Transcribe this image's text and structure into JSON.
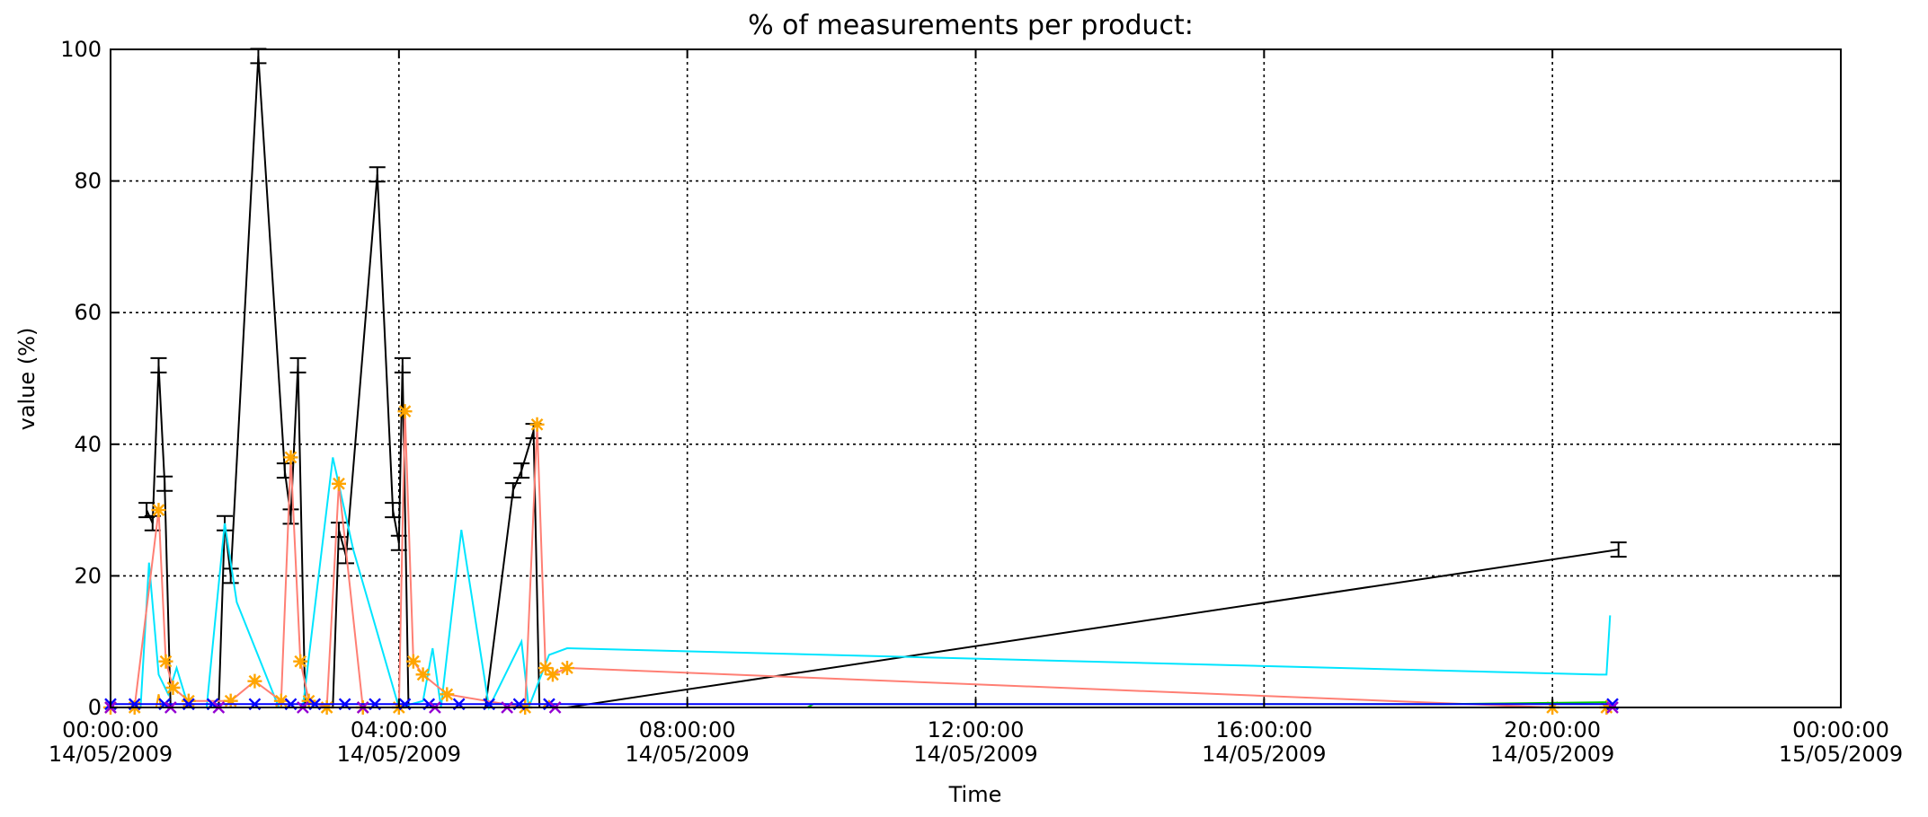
{
  "chart_data": {
    "type": "line",
    "title": "% of measurements per product:",
    "xlabel": "Time",
    "ylabel": "value (%)",
    "ylim": [
      0,
      100
    ],
    "xlim": [
      "2009-05-14T00:00",
      "2009-05-15T00:00"
    ],
    "grid": true,
    "y_ticks": [
      "0",
      "20",
      "40",
      "60",
      "80",
      "100"
    ],
    "x_ticks": [
      {
        "t": "2009-05-14T00:00",
        "time": "00:00:00",
        "date": "14/05/2009"
      },
      {
        "t": "2009-05-14T04:00",
        "time": "04:00:00",
        "date": "14/05/2009"
      },
      {
        "t": "2009-05-14T08:00",
        "time": "08:00:00",
        "date": "14/05/2009"
      },
      {
        "t": "2009-05-14T12:00",
        "time": "12:00:00",
        "date": "14/05/2009"
      },
      {
        "t": "2009-05-14T16:00",
        "time": "16:00:00",
        "date": "14/05/2009"
      },
      {
        "t": "2009-05-14T20:00",
        "time": "20:00:00",
        "date": "14/05/2009"
      },
      {
        "t": "2009-05-15T00:00",
        "time": "00:00:00",
        "date": "15/05/2009"
      }
    ],
    "series": [
      {
        "color": "#000000",
        "marker": "errorbar",
        "points": [
          [
            "2009-05-14T00:30",
            30
          ],
          [
            "2009-05-14T00:35",
            28
          ],
          [
            "2009-05-14T00:40",
            52
          ],
          [
            "2009-05-14T00:45",
            34
          ],
          [
            "2009-05-14T00:50",
            0
          ],
          [
            "2009-05-14T01:30",
            0
          ],
          [
            "2009-05-14T01:35",
            28
          ],
          [
            "2009-05-14T01:40",
            20
          ],
          [
            "2009-05-14T02:03",
            99
          ],
          [
            "2009-05-14T02:25",
            36
          ],
          [
            "2009-05-14T02:30",
            29
          ],
          [
            "2009-05-14T02:36",
            52
          ],
          [
            "2009-05-14T02:42",
            0
          ],
          [
            "2009-05-14T03:05",
            0
          ],
          [
            "2009-05-14T03:10",
            27
          ],
          [
            "2009-05-14T03:16",
            23
          ],
          [
            "2009-05-14T03:42",
            81
          ],
          [
            "2009-05-14T03:55",
            30
          ],
          [
            "2009-05-14T04:00",
            25
          ],
          [
            "2009-05-14T04:03",
            52
          ],
          [
            "2009-05-14T04:08",
            0
          ],
          [
            "2009-05-14T04:14",
            0
          ],
          [
            "2009-05-14T04:55",
            0
          ],
          [
            "2009-05-14T05:12",
            0
          ],
          [
            "2009-05-14T05:35",
            33
          ],
          [
            "2009-05-14T05:42",
            36
          ],
          [
            "2009-05-14T05:52",
            42
          ],
          [
            "2009-05-14T05:57",
            0
          ],
          [
            "2009-05-14T06:20",
            0
          ],
          [
            "2009-05-14T20:55",
            24
          ]
        ]
      },
      {
        "color": "#00e5ff",
        "marker": "none",
        "points": [
          [
            "2009-05-14T00:00",
            0
          ],
          [
            "2009-05-14T00:25",
            0
          ],
          [
            "2009-05-14T00:32",
            22
          ],
          [
            "2009-05-14T00:40",
            5
          ],
          [
            "2009-05-14T00:48",
            2
          ],
          [
            "2009-05-14T00:55",
            6
          ],
          [
            "2009-05-14T01:05",
            0
          ],
          [
            "2009-05-14T01:20",
            0
          ],
          [
            "2009-05-14T01:35",
            28
          ],
          [
            "2009-05-14T01:45",
            16
          ],
          [
            "2009-05-14T02:20",
            0
          ],
          [
            "2009-05-14T02:40",
            0
          ],
          [
            "2009-05-14T03:05",
            38
          ],
          [
            "2009-05-14T03:22",
            24
          ],
          [
            "2009-05-14T04:00",
            0
          ],
          [
            "2009-05-14T04:20",
            1
          ],
          [
            "2009-05-14T04:28",
            9
          ],
          [
            "2009-05-14T04:35",
            0
          ],
          [
            "2009-05-14T04:52",
            27
          ],
          [
            "2009-05-14T05:15",
            0
          ],
          [
            "2009-05-14T05:42",
            10
          ],
          [
            "2009-05-14T05:48",
            0
          ],
          [
            "2009-05-14T06:05",
            8
          ],
          [
            "2009-05-14T06:20",
            9
          ],
          [
            "2009-05-14T20:40",
            5
          ],
          [
            "2009-05-14T20:45",
            5
          ],
          [
            "2009-05-14T20:48",
            14
          ]
        ]
      },
      {
        "color": "#ff7f74",
        "marker": "asterisk",
        "points": [
          [
            "2009-05-14T00:00",
            0
          ],
          [
            "2009-05-14T00:20",
            0
          ],
          [
            "2009-05-14T00:40",
            30
          ],
          [
            "2009-05-14T00:46",
            7
          ],
          [
            "2009-05-14T00:52",
            3
          ],
          [
            "2009-05-14T01:05",
            1
          ],
          [
            "2009-05-14T01:40",
            1
          ],
          [
            "2009-05-14T02:00",
            4
          ],
          [
            "2009-05-14T02:22",
            1
          ],
          [
            "2009-05-14T02:30",
            38
          ],
          [
            "2009-05-14T02:38",
            7
          ],
          [
            "2009-05-14T02:45",
            1
          ],
          [
            "2009-05-14T03:00",
            0
          ],
          [
            "2009-05-14T03:10",
            34
          ],
          [
            "2009-05-14T03:30",
            0
          ],
          [
            "2009-05-14T04:00",
            0
          ],
          [
            "2009-05-14T04:05",
            45
          ],
          [
            "2009-05-14T04:12",
            7
          ],
          [
            "2009-05-14T04:20",
            5
          ],
          [
            "2009-05-14T04:40",
            2
          ],
          [
            "2009-05-14T05:45",
            0
          ],
          [
            "2009-05-14T05:55",
            43
          ],
          [
            "2009-05-14T06:02",
            6
          ],
          [
            "2009-05-14T06:08",
            5
          ],
          [
            "2009-05-14T06:20",
            6
          ],
          [
            "2009-05-14T20:00",
            0
          ],
          [
            "2009-05-14T20:45",
            0
          ]
        ]
      },
      {
        "color": "#ffa500",
        "marker": "none",
        "points": [
          [
            "2009-05-14T00:00",
            0
          ],
          [
            "2009-05-14T00:38",
            0
          ],
          [
            "2009-05-14T00:40",
            2
          ],
          [
            "2009-05-14T00:42",
            0
          ],
          [
            "2009-05-14T06:00",
            0
          ],
          [
            "2009-05-14T06:05",
            1
          ],
          [
            "2009-05-14T06:10",
            0
          ],
          [
            "2009-05-14T20:45",
            0
          ]
        ]
      },
      {
        "color": "#00cc00",
        "marker": "none",
        "points": [
          [
            "2009-05-14T00:00",
            0
          ],
          [
            "2009-05-14T09:40",
            0
          ],
          [
            "2009-05-14T09:45",
            0.5
          ],
          [
            "2009-05-14T18:30",
            0.5
          ],
          [
            "2009-05-14T20:45",
            0.8
          ]
        ]
      },
      {
        "color": "#0000ff",
        "marker": "x",
        "points": [
          [
            "2009-05-14T00:00",
            0.5
          ],
          [
            "2009-05-14T00:20",
            0.5
          ],
          [
            "2009-05-14T00:45",
            0.5
          ],
          [
            "2009-05-14T01:05",
            0.5
          ],
          [
            "2009-05-14T01:25",
            0.5
          ],
          [
            "2009-05-14T02:00",
            0.5
          ],
          [
            "2009-05-14T02:30",
            0.5
          ],
          [
            "2009-05-14T02:50",
            0.5
          ],
          [
            "2009-05-14T03:15",
            0.5
          ],
          [
            "2009-05-14T03:40",
            0.5
          ],
          [
            "2009-05-14T04:05",
            0.5
          ],
          [
            "2009-05-14T04:25",
            0.5
          ],
          [
            "2009-05-14T04:50",
            0.5
          ],
          [
            "2009-05-14T05:15",
            0.5
          ],
          [
            "2009-05-14T05:40",
            0.5
          ],
          [
            "2009-05-14T06:05",
            0.5
          ],
          [
            "2009-05-14T20:50",
            0.5
          ]
        ]
      },
      {
        "color": "#9400d3",
        "marker": "x",
        "points": [
          [
            "2009-05-14T00:00",
            0
          ],
          [
            "2009-05-14T00:50",
            0
          ],
          [
            "2009-05-14T01:30",
            0
          ],
          [
            "2009-05-14T02:40",
            0
          ],
          [
            "2009-05-14T03:30",
            0
          ],
          [
            "2009-05-14T04:30",
            0
          ],
          [
            "2009-05-14T05:30",
            0
          ],
          [
            "2009-05-14T06:10",
            0
          ],
          [
            "2009-05-14T20:50",
            0
          ]
        ]
      }
    ]
  }
}
